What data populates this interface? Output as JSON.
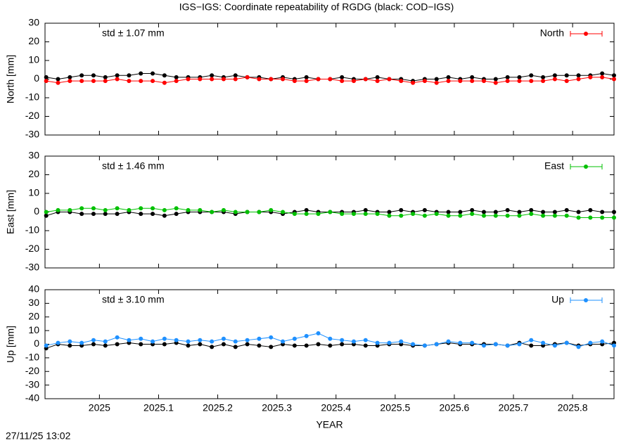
{
  "title": "IGS−IGS: Coordinate repeatability of RGDG (black: COD−IGS)",
  "footer": "27/11/25 13:02",
  "chart_data": [
    {
      "type": "line",
      "ylabel": "North [mm]",
      "annotation": "std ± 1.07 mm",
      "legend": "upper right",
      "xlim": [
        2024.908,
        2025.87
      ],
      "xticks": [
        2025,
        2025.1,
        2025.2,
        2025.3,
        2025.4,
        2025.5,
        2025.6,
        2025.7,
        2025.8
      ],
      "ylim": [
        -30,
        30
      ],
      "yticks": [
        -30,
        -20,
        -10,
        0,
        10,
        20,
        30
      ],
      "x": [
        2024.91,
        2024.93,
        2024.95,
        2024.97,
        2024.99,
        2025.01,
        2025.03,
        2025.05,
        2025.07,
        2025.09,
        2025.11,
        2025.13,
        2025.15,
        2025.17,
        2025.19,
        2025.21,
        2025.23,
        2025.25,
        2025.27,
        2025.29,
        2025.31,
        2025.33,
        2025.35,
        2025.37,
        2025.39,
        2025.41,
        2025.43,
        2025.45,
        2025.47,
        2025.49,
        2025.51,
        2025.53,
        2025.55,
        2025.57,
        2025.59,
        2025.61,
        2025.63,
        2025.65,
        2025.67,
        2025.69,
        2025.71,
        2025.73,
        2025.75,
        2025.77,
        2025.79,
        2025.81,
        2025.83,
        2025.85,
        2025.87
      ],
      "series": [
        {
          "name": "North",
          "color": "#ff0000",
          "values": [
            -1,
            -2,
            -1,
            -1,
            -1,
            -1,
            0,
            -1,
            -1,
            -1,
            -2,
            -1,
            0,
            0,
            0,
            0,
            0,
            1,
            0,
            0,
            0,
            -1,
            -1,
            0,
            0,
            -1,
            -1,
            0,
            -1,
            0,
            -1,
            -2,
            -1,
            -2,
            -1,
            -1,
            -1,
            -1,
            -2,
            -1,
            -1,
            -1,
            -1,
            0,
            -1,
            0,
            1,
            1,
            0
          ]
        },
        {
          "color": "#000000",
          "values": [
            1,
            0,
            1,
            2,
            2,
            1,
            2,
            2,
            3,
            3,
            2,
            1,
            1,
            1,
            2,
            1,
            2,
            1,
            1,
            0,
            1,
            0,
            1,
            0,
            0,
            1,
            0,
            0,
            1,
            0,
            0,
            -1,
            0,
            0,
            1,
            0,
            1,
            0,
            0,
            1,
            1,
            2,
            1,
            2,
            2,
            2,
            2,
            3,
            2
          ]
        }
      ]
    },
    {
      "type": "line",
      "ylabel": "East [mm]",
      "annotation": "std ± 1.46 mm",
      "legend": "upper right",
      "xlim": [
        2024.908,
        2025.87
      ],
      "xticks": [
        2025,
        2025.1,
        2025.2,
        2025.3,
        2025.4,
        2025.5,
        2025.6,
        2025.7,
        2025.8
      ],
      "ylim": [
        -30,
        30
      ],
      "yticks": [
        -30,
        -20,
        -10,
        0,
        10,
        20,
        30
      ],
      "x": [
        2024.91,
        2024.93,
        2024.95,
        2024.97,
        2024.99,
        2025.01,
        2025.03,
        2025.05,
        2025.07,
        2025.09,
        2025.11,
        2025.13,
        2025.15,
        2025.17,
        2025.19,
        2025.21,
        2025.23,
        2025.25,
        2025.27,
        2025.29,
        2025.31,
        2025.33,
        2025.35,
        2025.37,
        2025.39,
        2025.41,
        2025.43,
        2025.45,
        2025.47,
        2025.49,
        2025.51,
        2025.53,
        2025.55,
        2025.57,
        2025.59,
        2025.61,
        2025.63,
        2025.65,
        2025.67,
        2025.69,
        2025.71,
        2025.73,
        2025.75,
        2025.77,
        2025.79,
        2025.81,
        2025.83,
        2025.85,
        2025.87
      ],
      "series": [
        {
          "name": "East",
          "color": "#00c000",
          "values": [
            0,
            1,
            1,
            2,
            2,
            1,
            2,
            1,
            2,
            2,
            1,
            2,
            1,
            1,
            0,
            1,
            0,
            0,
            0,
            1,
            0,
            -1,
            -1,
            -1,
            0,
            -1,
            -1,
            -1,
            -1,
            -2,
            -2,
            -1,
            -2,
            -1,
            -2,
            -2,
            -1,
            -2,
            -2,
            -2,
            -2,
            -1,
            -2,
            -2,
            -2,
            -3,
            -3,
            -3,
            -3
          ]
        },
        {
          "color": "#000000",
          "values": [
            -2,
            0,
            0,
            -1,
            -1,
            -1,
            -1,
            0,
            -1,
            -1,
            -2,
            -1,
            0,
            0,
            0,
            0,
            -1,
            0,
            0,
            0,
            -1,
            0,
            1,
            0,
            0,
            0,
            0,
            1,
            0,
            0,
            1,
            0,
            1,
            0,
            0,
            0,
            1,
            0,
            0,
            1,
            0,
            1,
            0,
            0,
            1,
            0,
            1,
            0,
            0
          ]
        }
      ]
    },
    {
      "type": "line",
      "ylabel": "Up [mm]",
      "xlabel": "YEAR",
      "annotation": "std ± 3.10 mm",
      "legend": "upper right",
      "xlim": [
        2024.908,
        2025.87
      ],
      "xticks": [
        2025,
        2025.1,
        2025.2,
        2025.3,
        2025.4,
        2025.5,
        2025.6,
        2025.7,
        2025.8
      ],
      "ylim": [
        -40,
        40
      ],
      "yticks": [
        -40,
        -30,
        -20,
        -10,
        0,
        10,
        20,
        30,
        40
      ],
      "x": [
        2024.91,
        2024.93,
        2024.95,
        2024.97,
        2024.99,
        2025.01,
        2025.03,
        2025.05,
        2025.07,
        2025.09,
        2025.11,
        2025.13,
        2025.15,
        2025.17,
        2025.19,
        2025.21,
        2025.23,
        2025.25,
        2025.27,
        2025.29,
        2025.31,
        2025.33,
        2025.35,
        2025.37,
        2025.39,
        2025.41,
        2025.43,
        2025.45,
        2025.47,
        2025.49,
        2025.51,
        2025.53,
        2025.55,
        2025.57,
        2025.59,
        2025.61,
        2025.63,
        2025.65,
        2025.67,
        2025.69,
        2025.71,
        2025.73,
        2025.75,
        2025.77,
        2025.79,
        2025.81,
        2025.83,
        2025.85,
        2025.87
      ],
      "series": [
        {
          "name": "Up",
          "color": "#1e90ff",
          "values": [
            -1,
            1,
            2,
            1,
            3,
            2,
            5,
            3,
            4,
            2,
            4,
            3,
            2,
            3,
            2,
            4,
            2,
            3,
            4,
            5,
            2,
            4,
            6,
            8,
            4,
            3,
            2,
            3,
            1,
            1,
            2,
            0,
            -1,
            0,
            2,
            1,
            1,
            -1,
            0,
            -1,
            0,
            3,
            1,
            -1,
            1,
            -2,
            1,
            2,
            -1
          ]
        },
        {
          "color": "#000000",
          "values": [
            -3,
            0,
            -1,
            -1,
            0,
            -1,
            0,
            1,
            0,
            0,
            0,
            1,
            -1,
            0,
            -2,
            0,
            -2,
            0,
            -1,
            -2,
            0,
            -1,
            -1,
            0,
            -1,
            0,
            0,
            -1,
            -1,
            0,
            0,
            -1,
            -1,
            0,
            1,
            0,
            0,
            0,
            0,
            -1,
            1,
            -1,
            -1,
            0,
            1,
            -1,
            0,
            0,
            1
          ]
        }
      ]
    }
  ]
}
